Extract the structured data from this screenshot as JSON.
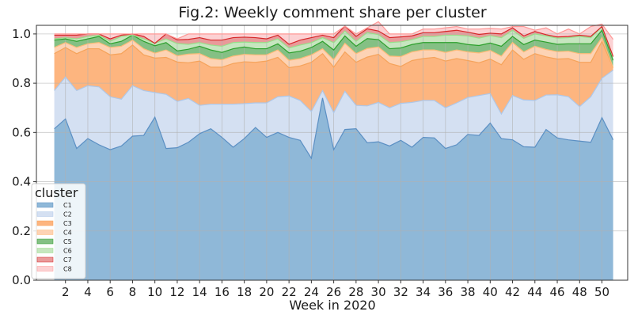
{
  "chart_data": {
    "type": "area",
    "stacked": true,
    "normalized": true,
    "title": "Fig.2: Weekly comment share per cluster",
    "xlabel": "Week in 2020",
    "ylabel": "",
    "x": [
      1,
      2,
      3,
      4,
      5,
      6,
      7,
      8,
      9,
      10,
      11,
      12,
      13,
      14,
      15,
      16,
      17,
      18,
      19,
      20,
      21,
      22,
      23,
      24,
      25,
      26,
      27,
      28,
      29,
      30,
      31,
      32,
      33,
      34,
      35,
      36,
      37,
      38,
      39,
      40,
      41,
      42,
      43,
      44,
      45,
      46,
      47,
      48,
      49,
      50,
      51
    ],
    "xticks": [
      2,
      4,
      6,
      8,
      10,
      12,
      14,
      16,
      18,
      20,
      22,
      24,
      26,
      28,
      30,
      32,
      34,
      36,
      38,
      40,
      42,
      44,
      46,
      48,
      50
    ],
    "xlim": [
      -0.6,
      52.3
    ],
    "ylim": [
      0,
      1.035
    ],
    "yticks": [
      0.0,
      0.2,
      0.4,
      0.6,
      0.8,
      1.0
    ],
    "grid": true,
    "legend": {
      "title": "cluster",
      "position": "lower-left"
    },
    "series": [
      {
        "name": "C1",
        "color": "#8fb8d8",
        "edge": "#5b8fc3",
        "values": [
          0.615,
          0.655,
          0.535,
          0.575,
          0.55,
          0.53,
          0.545,
          0.585,
          0.588,
          0.662,
          0.535,
          0.538,
          0.56,
          0.595,
          0.615,
          0.58,
          0.54,
          0.575,
          0.62,
          0.58,
          0.6,
          0.58,
          0.568,
          0.495,
          0.74,
          0.53,
          0.612,
          0.615,
          0.558,
          0.562,
          0.545,
          0.568,
          0.54,
          0.58,
          0.578,
          0.535,
          0.55,
          0.592,
          0.588,
          0.638,
          0.575,
          0.57,
          0.542,
          0.54,
          0.612,
          0.578,
          0.57,
          0.565,
          0.56,
          0.66,
          0.57
        ]
      },
      {
        "name": "C2",
        "color": "#d4e0f2",
        "edge": "#aec7e8",
        "values": [
          0.155,
          0.17,
          0.235,
          0.215,
          0.235,
          0.215,
          0.19,
          0.205,
          0.182,
          0.1,
          0.22,
          0.188,
          0.178,
          0.115,
          0.1,
          0.135,
          0.175,
          0.142,
          0.1,
          0.14,
          0.145,
          0.168,
          0.162,
          0.19,
          0.03,
          0.15,
          0.155,
          0.095,
          0.15,
          0.16,
          0.155,
          0.15,
          0.182,
          0.15,
          0.152,
          0.165,
          0.17,
          0.15,
          0.162,
          0.12,
          0.1,
          0.18,
          0.19,
          0.19,
          0.14,
          0.175,
          0.175,
          0.14,
          0.185,
          0.16,
          0.283
        ]
      },
      {
        "name": "C3",
        "color": "#fdb57f",
        "edge": "#f5a35b",
        "values": [
          0.15,
          0.12,
          0.15,
          0.15,
          0.155,
          0.17,
          0.185,
          0.165,
          0.145,
          0.14,
          0.15,
          0.16,
          0.145,
          0.18,
          0.15,
          0.15,
          0.165,
          0.17,
          0.165,
          0.17,
          0.16,
          0.115,
          0.14,
          0.2,
          0.15,
          0.185,
          0.16,
          0.175,
          0.198,
          0.195,
          0.18,
          0.15,
          0.17,
          0.17,
          0.175,
          0.19,
          0.18,
          0.15,
          0.133,
          0.14,
          0.2,
          0.185,
          0.165,
          0.19,
          0.155,
          0.145,
          0.155,
          0.18,
          0.14,
          0.15,
          0.01
        ]
      },
      {
        "name": "C4",
        "color": "#fdd3b4",
        "edge": "#ffbb78",
        "values": [
          0.025,
          0.02,
          0.025,
          0.02,
          0.025,
          0.03,
          0.03,
          0.02,
          0.025,
          0.02,
          0.03,
          0.025,
          0.035,
          0.03,
          0.035,
          0.03,
          0.03,
          0.03,
          0.03,
          0.025,
          0.03,
          0.03,
          0.03,
          0.03,
          0.02,
          0.03,
          0.035,
          0.035,
          0.035,
          0.03,
          0.03,
          0.04,
          0.035,
          0.035,
          0.03,
          0.035,
          0.035,
          0.035,
          0.04,
          0.035,
          0.035,
          0.03,
          0.03,
          0.03,
          0.03,
          0.03,
          0.03,
          0.035,
          0.035,
          0.015,
          0.0
        ]
      },
      {
        "name": "C5",
        "color": "#84c084",
        "edge": "#2ca02c",
        "values": [
          0.03,
          0.015,
          0.025,
          0.02,
          0.025,
          0.015,
          0.02,
          0.02,
          0.03,
          0.03,
          0.03,
          0.02,
          0.02,
          0.03,
          0.035,
          0.03,
          0.03,
          0.03,
          0.025,
          0.025,
          0.025,
          0.03,
          0.03,
          0.03,
          0.03,
          0.04,
          0.03,
          0.03,
          0.04,
          0.03,
          0.03,
          0.035,
          0.03,
          0.03,
          0.03,
          0.04,
          0.03,
          0.03,
          0.03,
          0.03,
          0.04,
          0.025,
          0.03,
          0.025,
          0.03,
          0.03,
          0.03,
          0.04,
          0.04,
          0.03,
          0.03
        ]
      },
      {
        "name": "C6",
        "color": "#c6e6bf",
        "edge": "#98df8a",
        "values": [
          0.005,
          0.005,
          0.01,
          0.01,
          0.005,
          0.01,
          0.02,
          0.0,
          0.01,
          0.01,
          0.015,
          0.03,
          0.02,
          0.015,
          0.02,
          0.025,
          0.025,
          0.02,
          0.025,
          0.025,
          0.02,
          0.02,
          0.025,
          0.02,
          0.015,
          0.03,
          0.02,
          0.02,
          0.025,
          0.02,
          0.025,
          0.025,
          0.02,
          0.025,
          0.025,
          0.03,
          0.03,
          0.035,
          0.03,
          0.03,
          0.035,
          0.025,
          0.025,
          0.025,
          0.025,
          0.025,
          0.025,
          0.03,
          0.025,
          0.015,
          0.015
        ]
      },
      {
        "name": "C7",
        "color": "#e99a9a",
        "edge": "#d62728",
        "values": [
          0.015,
          0.01,
          0.015,
          0.01,
          0.005,
          0.01,
          0.005,
          0.005,
          0.01,
          0.0,
          0.02,
          0.015,
          0.02,
          0.02,
          0.02,
          0.025,
          0.02,
          0.02,
          0.02,
          0.015,
          0.015,
          0.015,
          0.02,
          0.02,
          0.01,
          0.02,
          0.02,
          0.02,
          0.015,
          0.015,
          0.02,
          0.02,
          0.015,
          0.015,
          0.015,
          0.015,
          0.02,
          0.015,
          0.015,
          0.01,
          0.015,
          0.01,
          0.01,
          0.01,
          0.005,
          0.005,
          0.005,
          0.005,
          0.005,
          0.0,
          0.0
        ]
      },
      {
        "name": "C8",
        "color": "#fcd1d3",
        "edge": "#ff9896",
        "values": [
          0.005,
          0.005,
          0.005,
          0.0,
          0.0,
          0.02,
          0.005,
          0.0,
          0.01,
          0.038,
          0.0,
          0.004,
          0.022,
          0.015,
          0.025,
          0.025,
          0.015,
          0.013,
          0.015,
          0.02,
          0.005,
          0.042,
          0.025,
          0.015,
          0.005,
          0.015,
          0.0,
          0.01,
          0.004,
          0.038,
          0.015,
          0.012,
          0.008,
          0.015,
          0.015,
          0.015,
          0.015,
          0.013,
          0.022,
          0.02,
          0.02,
          0.005,
          0.038,
          0.005,
          0.028,
          0.012,
          0.03,
          0.005,
          0.04,
          0.01,
          0.07
        ]
      }
    ]
  }
}
